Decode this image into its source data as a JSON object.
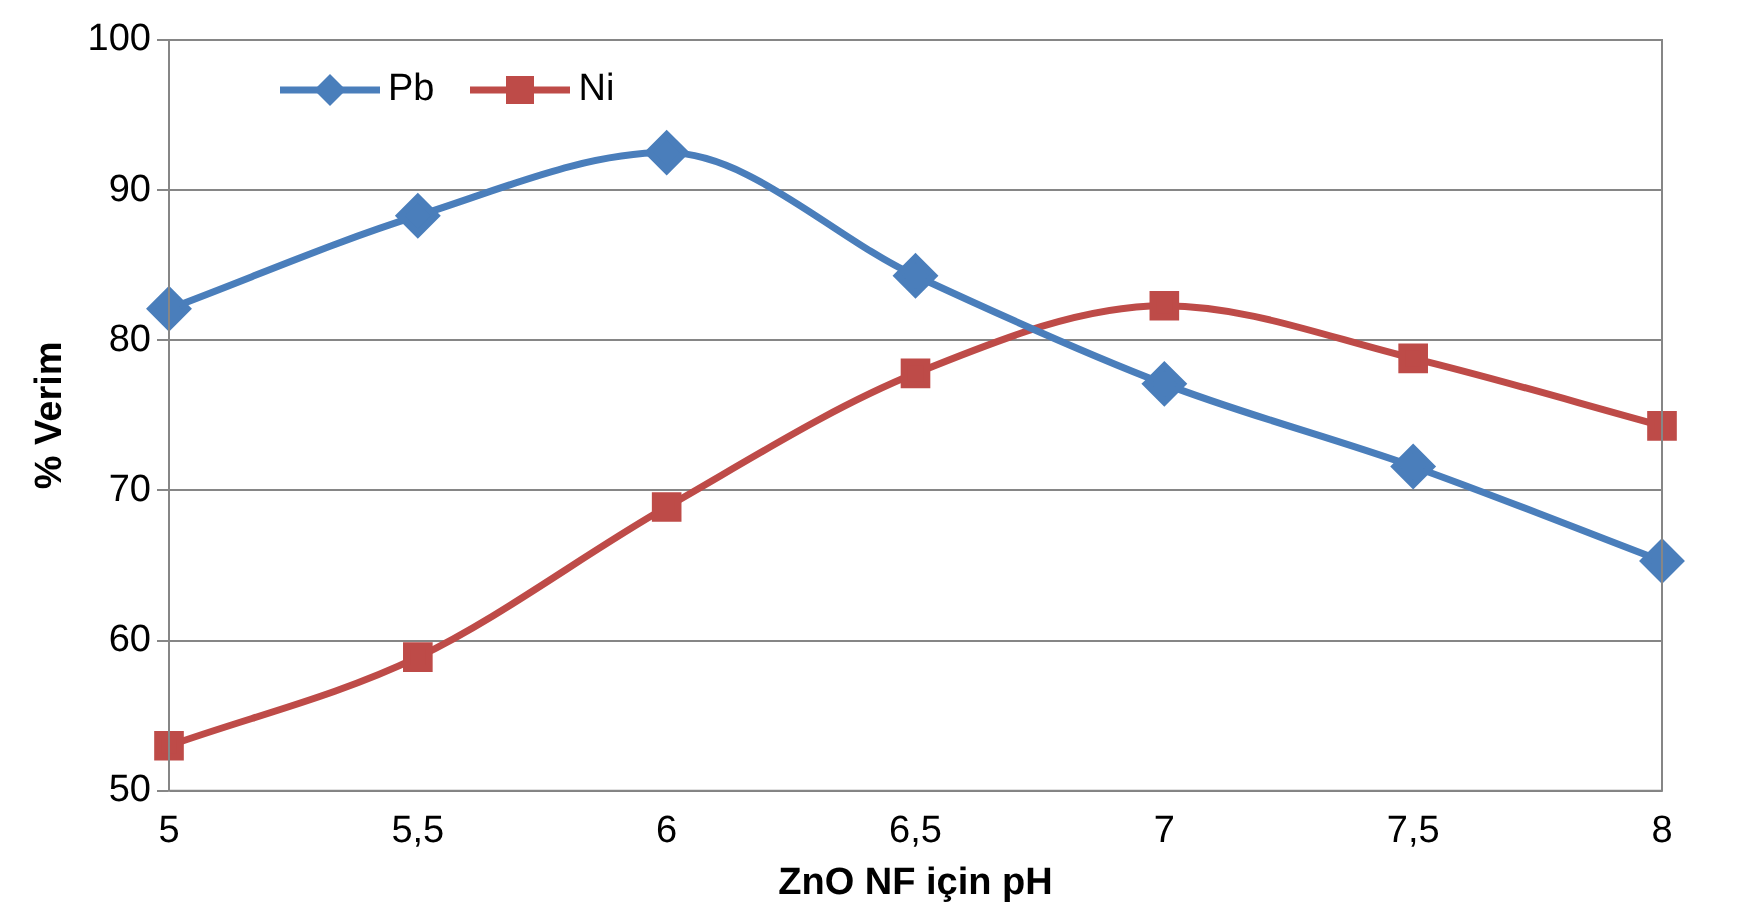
{
  "chart_data": {
    "type": "line",
    "xlabel": "ZnO NF için pH",
    "ylabel": "% Verim",
    "categories": [
      "5",
      "5,5",
      "6",
      "6,5",
      "7",
      "7,5",
      "8"
    ],
    "series": [
      {
        "name": "Pb",
        "color": "#4a7ebb",
        "marker": "diamond",
        "values": [
          82.1,
          88.3,
          92.5,
          84.3,
          77.1,
          71.6,
          65.3
        ]
      },
      {
        "name": "Ni",
        "color": "#be4b48",
        "marker": "square",
        "values": [
          53.0,
          58.9,
          68.9,
          77.8,
          82.3,
          78.8,
          74.3
        ]
      }
    ],
    "ylim": [
      50,
      100
    ],
    "yticks": [
      50,
      60,
      70,
      80,
      90,
      100
    ],
    "grid": "y",
    "legend": "top left",
    "line_style": "solid"
  }
}
